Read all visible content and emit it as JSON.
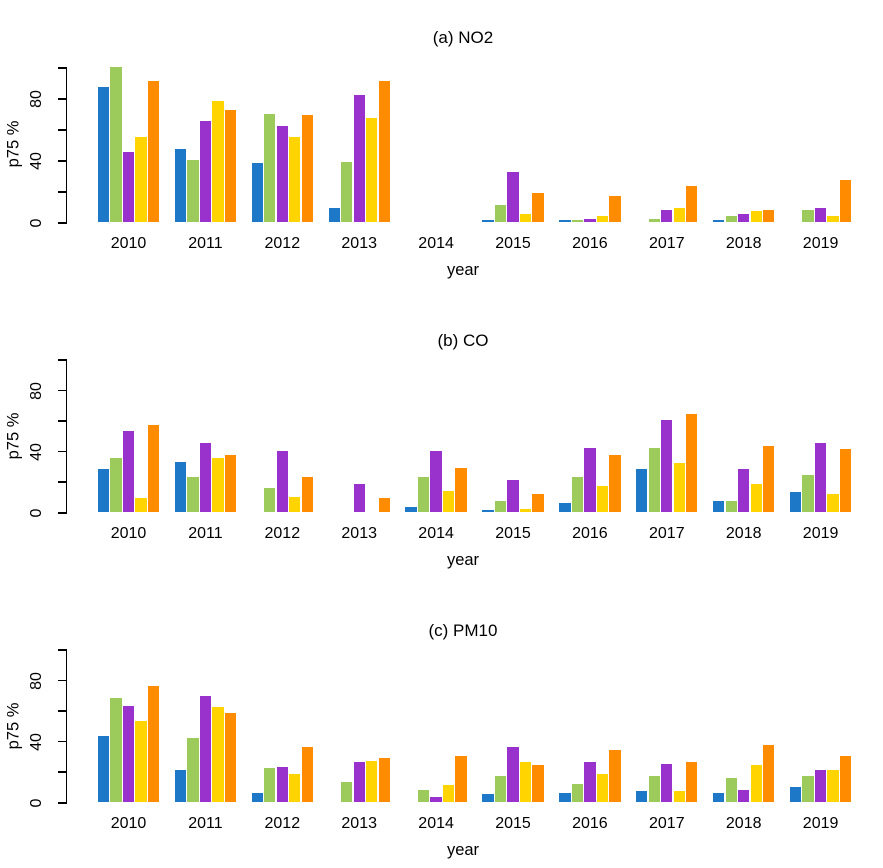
{
  "figure": {
    "background": "#ffffff",
    "text_color": "#000000",
    "axis_color": "#000000",
    "y_axis_label": "p75 %",
    "x_axis_label": "year",
    "series_colors": {
      "blue": "#1E78C8",
      "green": "#9CCB5B",
      "purple": "#9932CC",
      "yellow": "#FFD400",
      "orange": "#FF8C00"
    }
  },
  "chart_data": [
    {
      "type": "bar",
      "title": "(a) NO2",
      "xlabel": "year",
      "ylabel": "p75 %",
      "ylim": [
        0,
        100
      ],
      "y_ticks": [
        0,
        20,
        40,
        60,
        80,
        100
      ],
      "y_tick_labeled": [
        0,
        40,
        80
      ],
      "grid": false,
      "legend": false,
      "categories": [
        "2010",
        "2011",
        "2012",
        "2013",
        "2014",
        "2015",
        "2016",
        "2017",
        "2018",
        "2019"
      ],
      "series": [
        {
          "name": "blue",
          "color": "#1E78C8",
          "values": [
            87,
            47,
            38,
            9,
            0,
            1,
            1,
            0,
            1,
            0
          ]
        },
        {
          "name": "green",
          "color": "#9CCB5B",
          "values": [
            100,
            40,
            70,
            39,
            0,
            11,
            1,
            2,
            4,
            8
          ]
        },
        {
          "name": "purple",
          "color": "#9932CC",
          "values": [
            45,
            65,
            62,
            82,
            0,
            32,
            2,
            8,
            5,
            9
          ]
        },
        {
          "name": "yellow",
          "color": "#FFD400",
          "values": [
            55,
            78,
            55,
            67,
            0,
            5,
            4,
            9,
            7,
            4
          ]
        },
        {
          "name": "orange",
          "color": "#FF8C00",
          "values": [
            91,
            72,
            69,
            91,
            0,
            19,
            17,
            23,
            8,
            27
          ]
        }
      ]
    },
    {
      "type": "bar",
      "title": "(b) CO",
      "xlabel": "year",
      "ylabel": "p75 %",
      "ylim": [
        0,
        100
      ],
      "y_ticks": [
        0,
        20,
        40,
        60,
        80,
        100
      ],
      "y_tick_labeled": [
        0,
        40,
        80
      ],
      "grid": false,
      "legend": false,
      "categories": [
        "2010",
        "2011",
        "2012",
        "2013",
        "2014",
        "2015",
        "2016",
        "2017",
        "2018",
        "2019"
      ],
      "series": [
        {
          "name": "blue",
          "color": "#1E78C8",
          "values": [
            28,
            33,
            0,
            0,
            3,
            1,
            6,
            28,
            7,
            13
          ]
        },
        {
          "name": "green",
          "color": "#9CCB5B",
          "values": [
            35,
            23,
            16,
            0,
            23,
            7,
            23,
            42,
            7,
            24
          ]
        },
        {
          "name": "purple",
          "color": "#9932CC",
          "values": [
            53,
            45,
            40,
            18,
            40,
            21,
            42,
            60,
            28,
            45
          ]
        },
        {
          "name": "yellow",
          "color": "#FFD400",
          "values": [
            9,
            35,
            10,
            0,
            14,
            2,
            17,
            32,
            18,
            12
          ]
        },
        {
          "name": "orange",
          "color": "#FF8C00",
          "values": [
            57,
            37,
            23,
            9,
            29,
            12,
            37,
            64,
            43,
            41
          ]
        }
      ]
    },
    {
      "type": "bar",
      "title": "(c) PM10",
      "xlabel": "year",
      "ylabel": "p75 %",
      "ylim": [
        0,
        100
      ],
      "y_ticks": [
        0,
        20,
        40,
        60,
        80,
        100
      ],
      "y_tick_labeled": [
        0,
        40,
        80
      ],
      "grid": false,
      "legend": false,
      "categories": [
        "2010",
        "2011",
        "2012",
        "2013",
        "2014",
        "2015",
        "2016",
        "2017",
        "2018",
        "2019"
      ],
      "series": [
        {
          "name": "blue",
          "color": "#1E78C8",
          "values": [
            43,
            21,
            6,
            0,
            0,
            5,
            6,
            7,
            6,
            10
          ]
        },
        {
          "name": "green",
          "color": "#9CCB5B",
          "values": [
            68,
            42,
            22,
            13,
            8,
            17,
            12,
            17,
            16,
            17
          ]
        },
        {
          "name": "purple",
          "color": "#9932CC",
          "values": [
            63,
            69,
            23,
            26,
            3,
            36,
            26,
            25,
            8,
            21
          ]
        },
        {
          "name": "yellow",
          "color": "#FFD400",
          "values": [
            53,
            62,
            18,
            27,
            11,
            26,
            18,
            7,
            24,
            21
          ]
        },
        {
          "name": "orange",
          "color": "#FF8C00",
          "values": [
            76,
            58,
            36,
            29,
            30,
            24,
            34,
            26,
            37,
            30
          ]
        }
      ]
    }
  ]
}
